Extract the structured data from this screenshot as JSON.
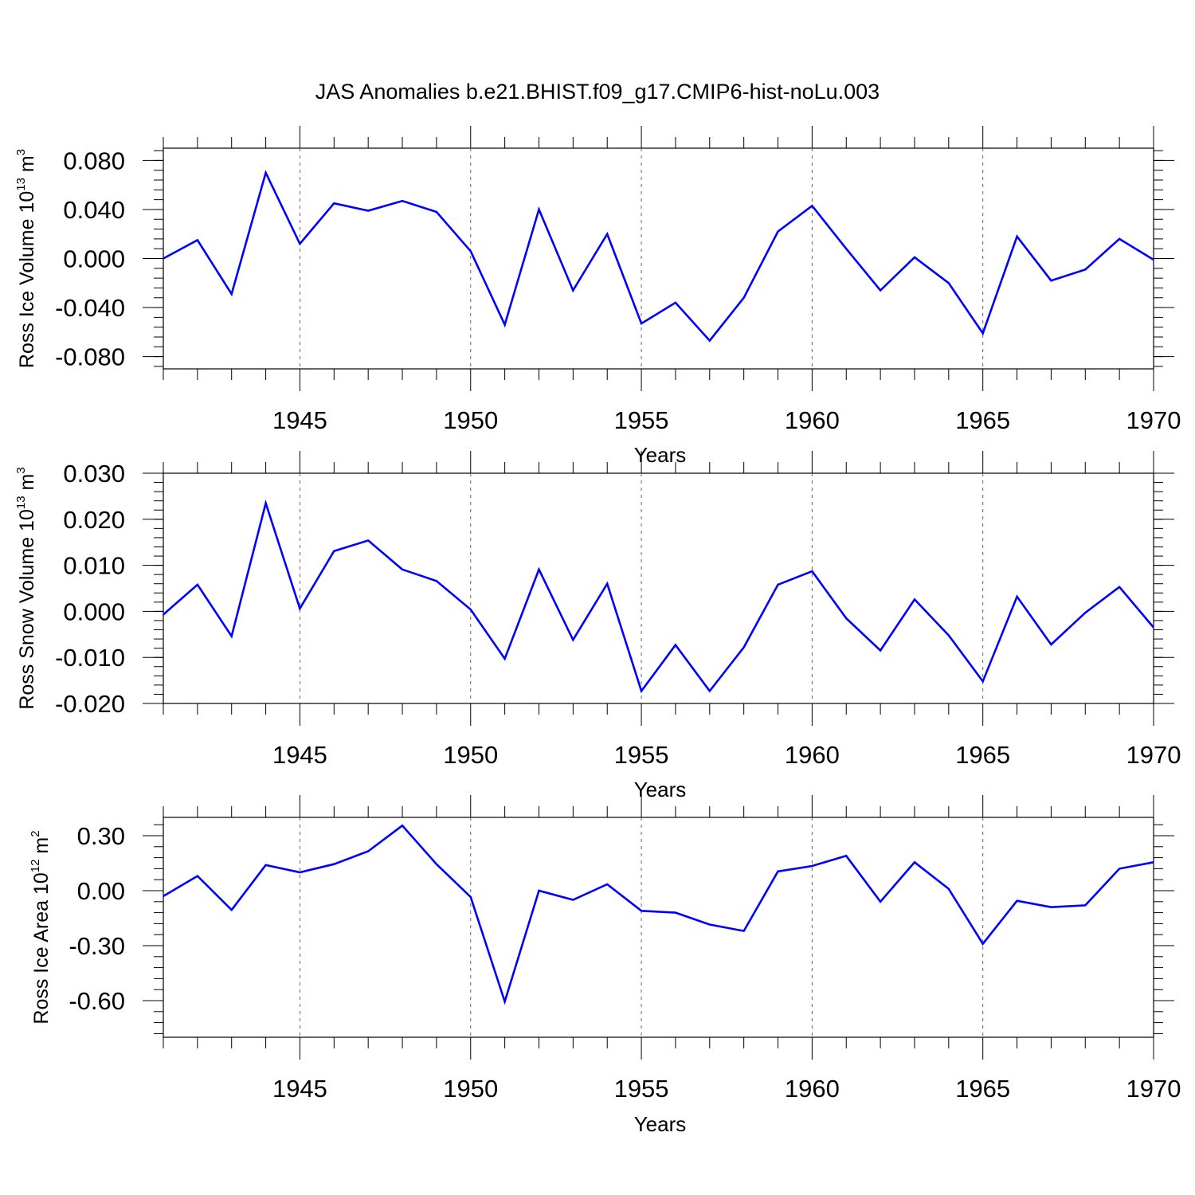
{
  "figure": {
    "title": "JAS Anomalies b.e21.BHIST.f09_g17.CMIP6-hist-noLu.003"
  },
  "chart_data": [
    {
      "type": "line",
      "title": "JAS Anomalies b.e21.BHIST.f09_g17.CMIP6-hist-noLu.003",
      "xlabel": "Years",
      "ylabel": {
        "text": "Ross Ice Volume 10",
        "exp": "13",
        "unit": "m",
        "unit_exp": "3"
      },
      "xlim": [
        1941,
        1970
      ],
      "ylim": [
        -0.09,
        0.09
      ],
      "x_ticks": [
        1945,
        1950,
        1955,
        1960,
        1965,
        1970
      ],
      "y_ticks": [
        -0.08,
        -0.04,
        0.0,
        0.04,
        0.08
      ],
      "y_tick_labels": [
        "-0.080",
        "-0.040",
        "0.000",
        "0.040",
        "0.080"
      ],
      "grid": "x dashed at major ticks",
      "color": "#0000ff",
      "x": [
        1941,
        1942,
        1943,
        1944,
        1945,
        1946,
        1947,
        1948,
        1949,
        1950,
        1951,
        1952,
        1953,
        1954,
        1955,
        1956,
        1957,
        1958,
        1959,
        1960,
        1961,
        1962,
        1963,
        1964,
        1965,
        1966,
        1967,
        1968,
        1969,
        1970
      ],
      "values": [
        0.0,
        0.015,
        -0.029,
        0.07,
        0.012,
        0.045,
        0.039,
        0.047,
        0.038,
        0.006,
        -0.054,
        0.04,
        -0.026,
        0.02,
        -0.053,
        -0.036,
        -0.067,
        -0.032,
        0.022,
        0.043,
        0.008,
        -0.026,
        0.001,
        -0.02,
        -0.061,
        0.018,
        -0.018,
        -0.009,
        0.016,
        -0.001
      ]
    },
    {
      "type": "line",
      "xlabel": "Years",
      "ylabel": {
        "text": "Ross Snow Volume 10",
        "exp": "13",
        "unit": "m",
        "unit_exp": "3"
      },
      "xlim": [
        1941,
        1970
      ],
      "ylim": [
        -0.02,
        0.03
      ],
      "x_ticks": [
        1945,
        1950,
        1955,
        1960,
        1965,
        1970
      ],
      "y_ticks": [
        -0.02,
        -0.01,
        0.0,
        0.01,
        0.02,
        0.03
      ],
      "y_tick_labels": [
        "-0.020",
        "-0.010",
        "0.000",
        "0.010",
        "0.020",
        "0.030"
      ],
      "grid": "x dashed at major ticks",
      "color": "#0000ff",
      "x": [
        1941,
        1942,
        1943,
        1944,
        1945,
        1946,
        1947,
        1948,
        1949,
        1950,
        1951,
        1952,
        1953,
        1954,
        1955,
        1956,
        1957,
        1958,
        1959,
        1960,
        1961,
        1962,
        1963,
        1964,
        1965,
        1966,
        1967,
        1968,
        1969,
        1970
      ],
      "values": [
        -0.0007,
        0.0058,
        -0.0054,
        0.0235,
        0.0006,
        0.0131,
        0.0154,
        0.0091,
        0.0066,
        0.0004,
        -0.0103,
        0.0091,
        -0.0062,
        0.006,
        -0.0173,
        -0.0073,
        -0.0173,
        -0.0078,
        0.0058,
        0.0087,
        -0.0015,
        -0.0085,
        0.0026,
        -0.0052,
        -0.0152,
        0.0032,
        -0.0072,
        -0.0003,
        0.0053,
        -0.0035
      ]
    },
    {
      "type": "line",
      "xlabel": "Years",
      "ylabel": {
        "text": "Ross Ice Area 10",
        "exp": "12",
        "unit": "m",
        "unit_exp": "2"
      },
      "xlim": [
        1941,
        1970
      ],
      "ylim": [
        -0.8,
        0.4
      ],
      "x_ticks": [
        1945,
        1950,
        1955,
        1960,
        1965,
        1970
      ],
      "y_ticks": [
        -0.6,
        -0.3,
        0.0,
        0.3
      ],
      "y_tick_labels": [
        "-0.60",
        "-0.30",
        "0.00",
        "0.30"
      ],
      "grid": "x dashed at major ticks",
      "color": "#0000ff",
      "x": [
        1941,
        1942,
        1943,
        1944,
        1945,
        1946,
        1947,
        1948,
        1949,
        1950,
        1951,
        1952,
        1953,
        1954,
        1955,
        1956,
        1957,
        1958,
        1959,
        1960,
        1961,
        1962,
        1963,
        1964,
        1965,
        1966,
        1967,
        1968,
        1969,
        1970
      ],
      "values": [
        -0.03,
        0.08,
        -0.105,
        0.14,
        0.1,
        0.145,
        0.215,
        0.355,
        0.145,
        -0.035,
        -0.605,
        0.0,
        -0.05,
        0.035,
        -0.11,
        -0.12,
        -0.185,
        -0.22,
        0.105,
        0.135,
        0.19,
        -0.06,
        0.155,
        0.01,
        -0.29,
        -0.055,
        -0.09,
        -0.08,
        0.12,
        0.155
      ]
    }
  ]
}
